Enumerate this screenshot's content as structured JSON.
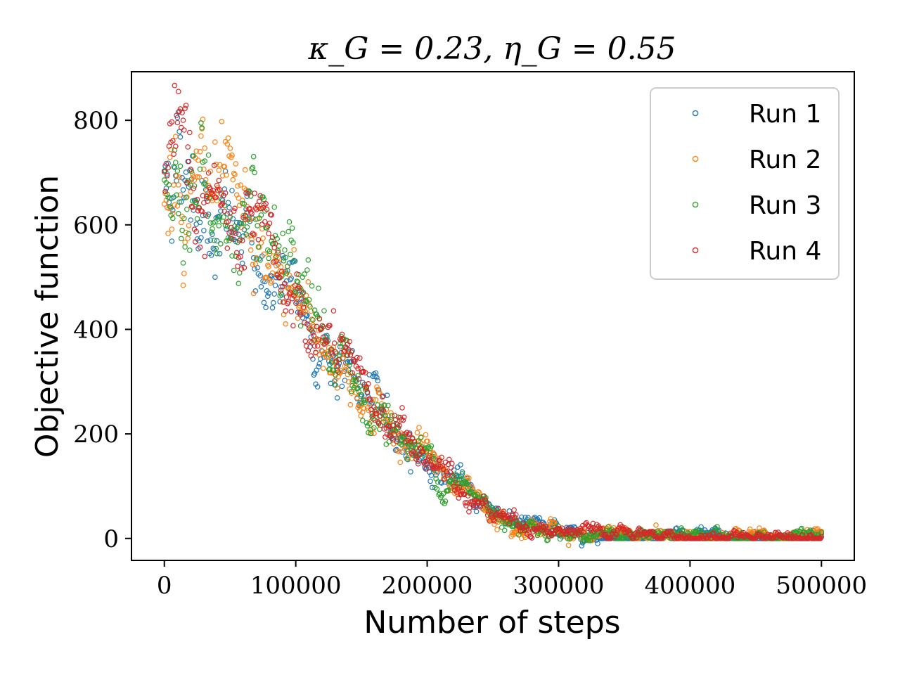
{
  "chart_data": {
    "type": "scatter",
    "title": "κ_G = 0.23,  η_G = 0.55",
    "xlabel": "Number of steps",
    "ylabel": "Objective function",
    "xlim": [
      -25000,
      525000
    ],
    "ylim": [
      -42,
      893
    ],
    "xticks": [
      0,
      100000,
      200000,
      300000,
      400000,
      500000
    ],
    "yticks": [
      0,
      200,
      400,
      600,
      800
    ],
    "marker": "open-circle",
    "legend_position": "top-right",
    "trend_x": [
      0,
      10000,
      20000,
      40000,
      60000,
      80000,
      100000,
      120000,
      140000,
      160000,
      180000,
      200000,
      220000,
      240000,
      260000,
      280000,
      300000,
      320000,
      340000,
      360000,
      400000,
      450000,
      500000
    ],
    "trend_y": [
      680,
      740,
      700,
      620,
      555,
      500,
      440,
      380,
      310,
      250,
      200,
      150,
      110,
      70,
      45,
      25,
      15,
      10,
      6,
      4,
      3,
      3,
      3
    ],
    "series": [
      {
        "name": "Run 1",
        "color": "#1f77b4",
        "spread": 1.0
      },
      {
        "name": "Run 2",
        "color": "#ff7f0e",
        "spread": 1.05
      },
      {
        "name": "Run 3",
        "color": "#2ca02c",
        "spread": 1.1
      },
      {
        "name": "Run 4",
        "color": "#d62728",
        "spread": 0.95
      }
    ]
  }
}
